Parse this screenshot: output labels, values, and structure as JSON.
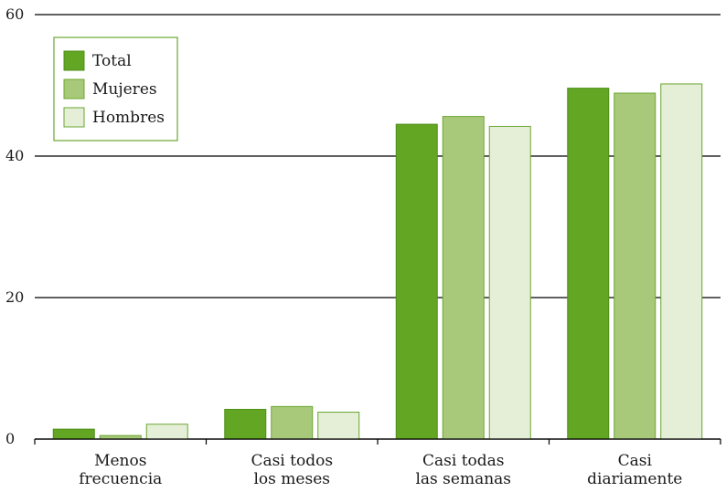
{
  "chart_data": {
    "type": "bar",
    "categories": [
      [
        "Menos",
        "frecuencia"
      ],
      [
        "Casi todos",
        "los meses"
      ],
      [
        "Casi todas",
        "las semanas"
      ],
      [
        "Casi",
        "diariamente"
      ]
    ],
    "series": [
      {
        "name": "Total",
        "values": [
          1.4,
          4.2,
          44.5,
          49.6
        ],
        "fill": "#62a624",
        "stroke": "#4f8f17"
      },
      {
        "name": "Mujeres",
        "values": [
          0.5,
          4.6,
          45.6,
          48.9
        ],
        "fill": "#a9c97a",
        "stroke": "#6aa630"
      },
      {
        "name": "Hombres",
        "values": [
          2.1,
          3.8,
          44.2,
          50.2
        ],
        "fill": "#e5eed6",
        "stroke": "#6aa630"
      }
    ],
    "ylim": [
      0,
      60
    ],
    "yticks": [
      0,
      20,
      40,
      60
    ],
    "grid": true,
    "legend_position": "top-left",
    "legend_border_color": "#6aa630",
    "axis_color": "#000000"
  }
}
